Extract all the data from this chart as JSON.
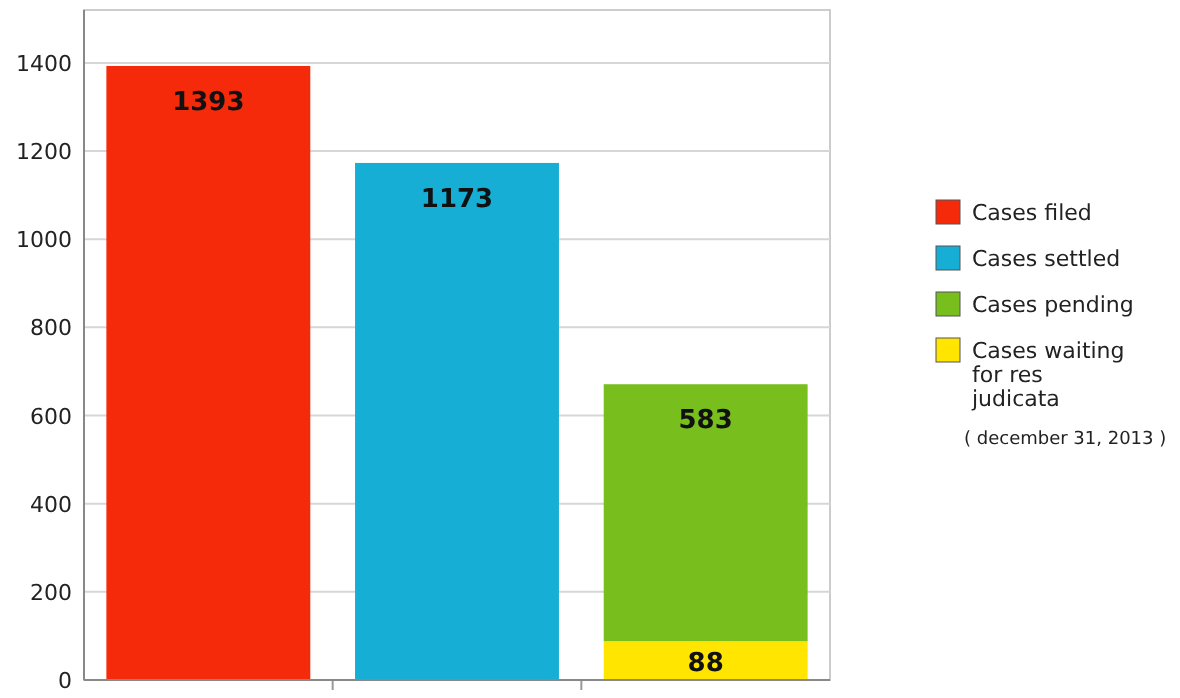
{
  "chart_data": {
    "type": "bar",
    "stacked": true,
    "categories": [
      null,
      null,
      null
    ],
    "series": [
      {
        "name": "Cases filed",
        "color": "#f52a0a",
        "values": [
          1393,
          null,
          null
        ]
      },
      {
        "name": "Cases settled",
        "color": "#17aed6",
        "values": [
          null,
          1173,
          null
        ]
      },
      {
        "name": "Cases waiting for res judicata",
        "color": "#ffe500",
        "values": [
          null,
          null,
          88
        ]
      },
      {
        "name": "Cases pending",
        "color": "#78bf1e",
        "values": [
          null,
          null,
          583
        ]
      }
    ],
    "ylim": [
      0,
      1520
    ],
    "yticks": [
      0,
      200,
      400,
      600,
      800,
      1000,
      1200,
      1400
    ],
    "grid": "y",
    "legend": "right",
    "data_labels": true,
    "annotations": [
      "( december 31, 2013 )"
    ]
  }
}
